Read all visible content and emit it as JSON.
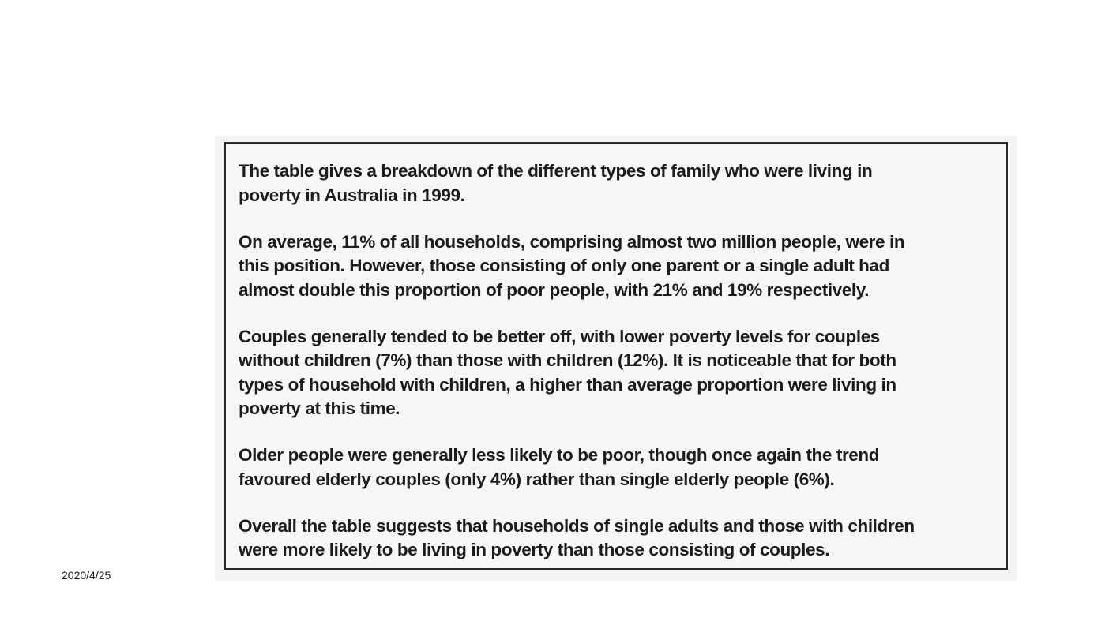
{
  "slide": {
    "date": "2020/4/25"
  },
  "document": {
    "paragraphs": [
      "The table gives a breakdown of the different types of family who were living in\npoverty in Australia in 1999.",
      "On average, 11% of all households, comprising almost two million people, were in\nthis position. However, those consisting of only one parent or a single adult had\nalmost double this proportion of poor people, with 21% and 19% respectively.",
      "Couples generally tended to be better off, with lower poverty levels for couples\nwithout children (7%) than those with children (12%). It is noticeable that for both\ntypes of household with children, a higher than average proportion were living in\npoverty at this time.",
      "Older people were generally less likely to be poor, though once again the trend\nfavoured elderly couples (only 4%) rather than single elderly people (6%).",
      "Overall the table suggests that households of single adults and those with children\nwere more likely to be living in poverty than those consisting of couples."
    ]
  }
}
